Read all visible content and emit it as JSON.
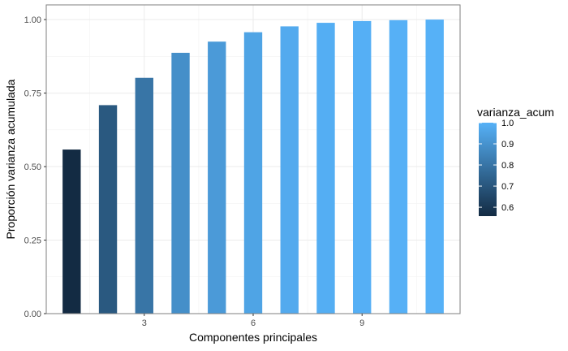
{
  "chart_data": {
    "type": "bar",
    "title": "",
    "xlabel": "Componentes principales",
    "ylabel": "Proporción varianza acumulada",
    "x": [
      1,
      2,
      3,
      4,
      5,
      6,
      7,
      8,
      9,
      10,
      11
    ],
    "values": [
      0.558,
      0.709,
      0.802,
      0.887,
      0.925,
      0.957,
      0.977,
      0.989,
      0.995,
      0.998,
      1.0
    ],
    "ylim": [
      0,
      1.05
    ],
    "xlim": [
      0.3,
      11.7
    ],
    "x_ticks": [
      3,
      6,
      9
    ],
    "x_tick_labels": [
      "3",
      "6",
      "9"
    ],
    "y_ticks": [
      0,
      0.25,
      0.5,
      0.75,
      1.0
    ],
    "y_tick_labels": [
      "0.00",
      "0.25",
      "0.50",
      "0.75",
      "1.00"
    ],
    "grid": true,
    "fill_scale": {
      "variable": "varianza_acum",
      "low_color": "#132B43",
      "high_color": "#56B1F7",
      "domain": [
        0.558,
        1.0
      ]
    },
    "legend": {
      "title": "varianza_acum",
      "position": "right",
      "labels": [
        "1.0",
        "0.9",
        "0.8",
        "0.7",
        "0.6"
      ],
      "values": [
        1.0,
        0.9,
        0.8,
        0.7,
        0.6
      ]
    }
  }
}
